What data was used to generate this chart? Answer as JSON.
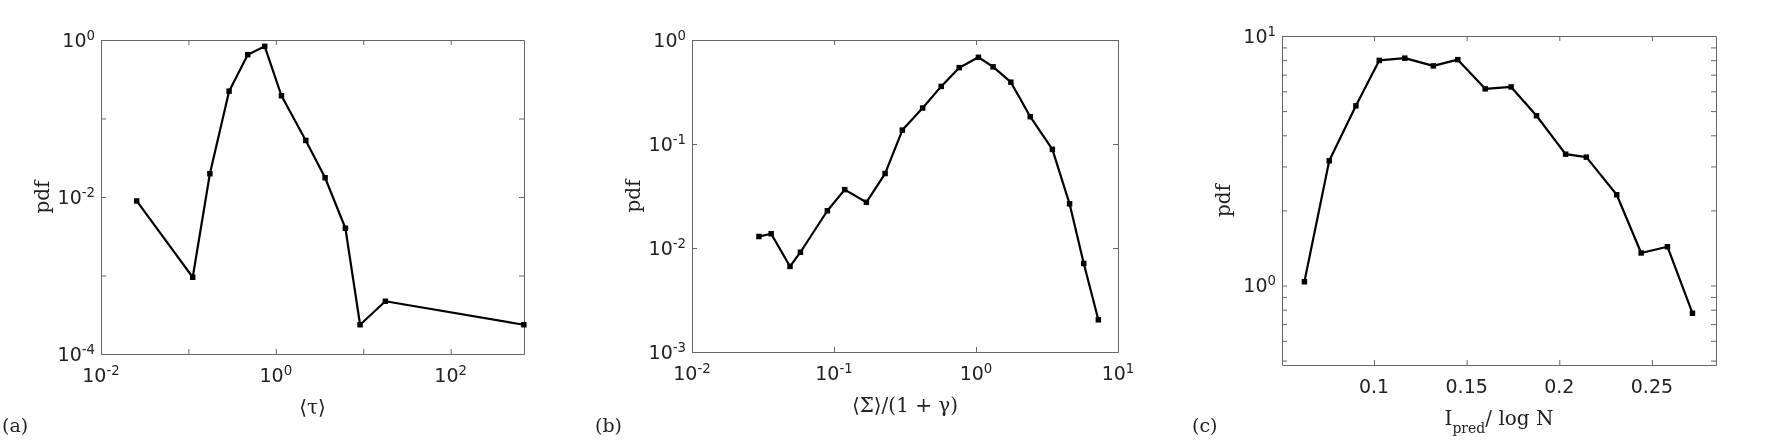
{
  "chart_data": [
    {
      "type": "line",
      "xlabel": "⟨τ⟩",
      "ylabel": "pdf",
      "annotations": [
        "(a)"
      ],
      "log": "xy",
      "marker": "square",
      "line_style": "solid",
      "grid": false,
      "xlim": [
        0.01,
        690
      ],
      "ylim": [
        0.0001,
        1
      ],
      "xticks": [
        {
          "value": 0.01,
          "label": "10$^{-2}$"
        },
        {
          "value": 0.1,
          "label": null
        },
        {
          "value": 1,
          "label": "10$^{0}$"
        },
        {
          "value": 10,
          "label": null
        },
        {
          "value": 100,
          "label": "10$^{2}$"
        }
      ],
      "yticks": [
        {
          "value": 0.0001,
          "label": "10$^{-4}$"
        },
        {
          "value": 0.001,
          "label": null
        },
        {
          "value": 0.01,
          "label": "10$^{-2}$"
        },
        {
          "value": 0.1,
          "label": null
        },
        {
          "value": 1,
          "label": "10$^{0}$"
        }
      ],
      "series": [
        {
          "color": "#000000",
          "x": [
            0.0256,
            0.112,
            0.176,
            0.292,
            0.477,
            0.746,
            1.16,
            2.2,
            3.66,
            6.25,
            9.2,
            17.9,
            687
          ],
          "values": [
            0.0089,
            0.00095,
            0.0198,
            0.223,
            0.65,
            0.83,
            0.195,
            0.0525,
            0.0176,
            0.004,
            0.000236,
            0.00047,
            0.000236
          ]
        }
      ]
    },
    {
      "type": "line",
      "xlabel": "⟨Σ̇⟩/(1 + γ)",
      "ylabel": "pdf",
      "annotations": [
        "(b)"
      ],
      "log": "xy",
      "marker": "square",
      "line_style": "solid",
      "grid": false,
      "xlim": [
        0.01,
        10
      ],
      "ylim": [
        0.001,
        1
      ],
      "xticks": [
        {
          "value": 0.01,
          "label": "10$^{-2}$"
        },
        {
          "value": 0.1,
          "label": "10$^{-1}$"
        },
        {
          "value": 1,
          "label": "10$^{0}$"
        },
        {
          "value": 10,
          "label": "10$^{1}$"
        }
      ],
      "yticks": [
        {
          "value": 0.001,
          "label": "10$^{-3}$"
        },
        {
          "value": 0.01,
          "label": "10$^{-2}$"
        },
        {
          "value": 0.1,
          "label": "10$^{-1}$"
        },
        {
          "value": 1,
          "label": "10$^{0}$"
        }
      ],
      "series": [
        {
          "color": "#000000",
          "x": [
            0.0296,
            0.0361,
            0.049,
            0.058,
            0.0898,
            0.119,
            0.169,
            0.229,
            0.303,
            0.421,
            0.569,
            0.762,
            1.04,
            1.32,
            1.76,
            2.41,
            3.45,
            4.56,
            5.74,
            7.27
          ],
          "values": [
            0.0129,
            0.0137,
            0.00665,
            0.0091,
            0.0228,
            0.0364,
            0.0275,
            0.052,
            0.136,
            0.222,
            0.358,
            0.542,
            0.682,
            0.552,
            0.393,
            0.183,
            0.0888,
            0.0266,
            0.0071,
            0.00204
          ]
        }
      ]
    },
    {
      "type": "line",
      "xlabel": "I$_{pred}$/ log N",
      "ylabel": "pdf",
      "annotations": [
        "(c)"
      ],
      "log": "y",
      "marker": "square",
      "line_style": "solid",
      "grid": false,
      "xlim": [
        0.0503,
        0.2846
      ],
      "ylim": [
        0.48,
        10
      ],
      "xticks": [
        0.1,
        0.15,
        0.2,
        0.25
      ],
      "yticks": [
        {
          "value": 0.5,
          "label": null
        },
        {
          "value": 0.6,
          "label": null
        },
        {
          "value": 0.7,
          "label": null
        },
        {
          "value": 0.8,
          "label": null
        },
        {
          "value": 0.9,
          "label": null
        },
        {
          "value": 1,
          "label": "10$^{0}$"
        },
        {
          "value": 2,
          "label": null
        },
        {
          "value": 3,
          "label": null
        },
        {
          "value": 4,
          "label": null
        },
        {
          "value": 5,
          "label": null
        },
        {
          "value": 6,
          "label": null
        },
        {
          "value": 7,
          "label": null
        },
        {
          "value": 8,
          "label": null
        },
        {
          "value": 9,
          "label": null
        },
        {
          "value": 10,
          "label": "10$^{1}$"
        }
      ],
      "series": [
        {
          "color": "#000000",
          "x": [
            0.0624,
            0.0758,
            0.0902,
            0.1028,
            0.1166,
            0.132,
            0.1452,
            0.16,
            0.174,
            0.1877,
            0.2034,
            0.2146,
            0.231,
            0.2442,
            0.2584,
            0.2719
          ],
          "values": [
            1.035,
            3.16,
            5.25,
            7.98,
            8.15,
            7.59,
            8.04,
            6.14,
            6.25,
            4.79,
            3.36,
            3.27,
            2.31,
            1.35,
            1.43,
            0.774
          ]
        }
      ]
    }
  ]
}
